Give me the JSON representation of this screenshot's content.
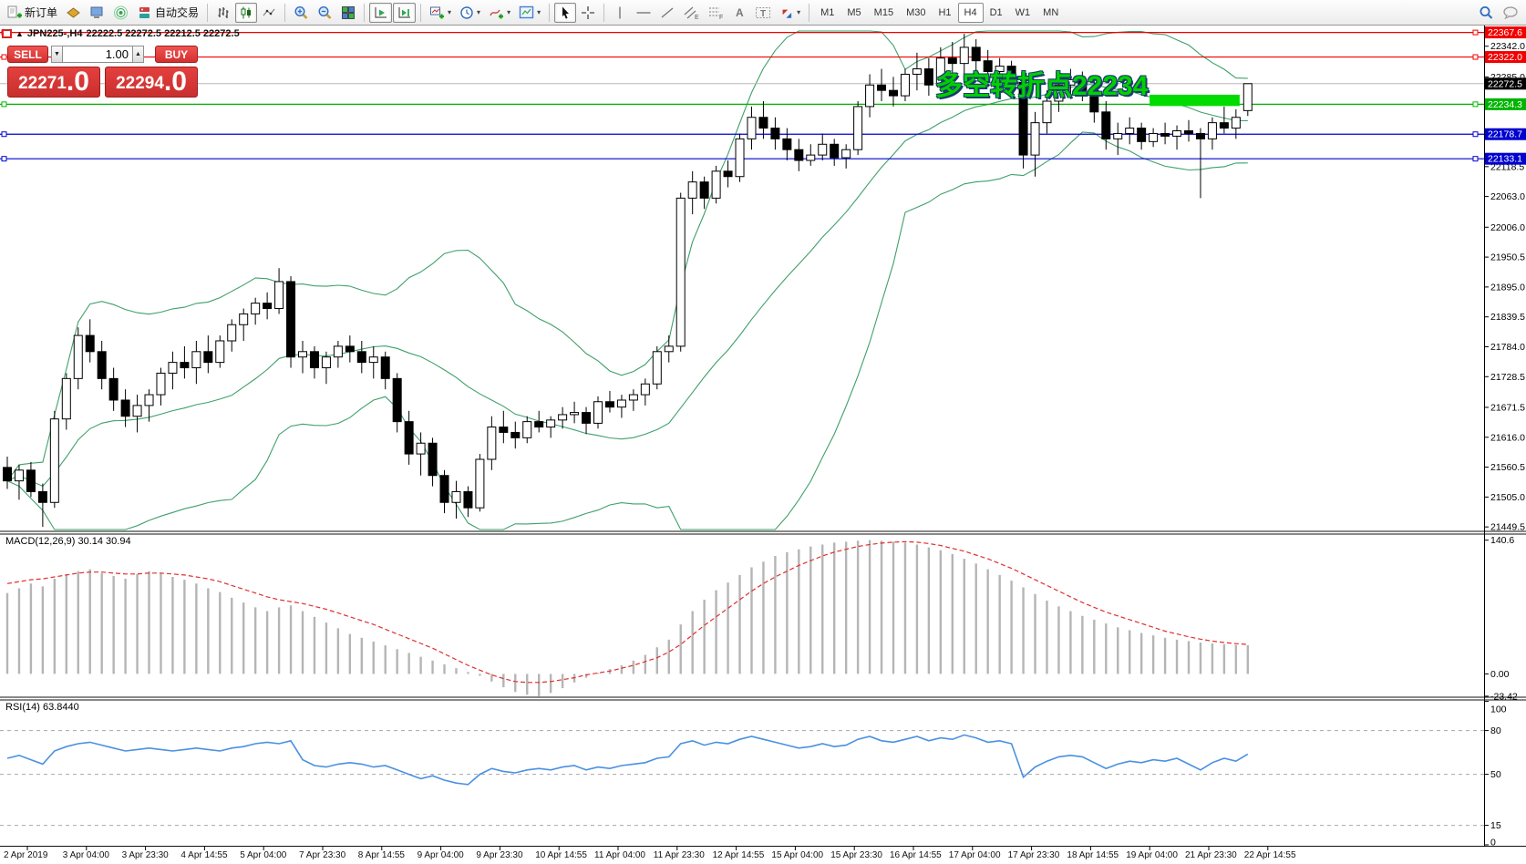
{
  "toolbar": {
    "new_order_label": "新订单",
    "auto_trading_label": "自动交易",
    "timeframes": [
      "M1",
      "M5",
      "M15",
      "M30",
      "H1",
      "H4",
      "D1",
      "W1",
      "MN"
    ],
    "active_timeframe": "H4"
  },
  "chart": {
    "symbol_title": "JPN225-,H4",
    "ohlc_text": "22222.5 22272.5 22212.5 22272.5",
    "annotation": "多空转折点22234",
    "panel_toggle": "▲",
    "trade_panel": {
      "sell_label": "SELL",
      "buy_label": "BUY",
      "volume": "1.00",
      "sell_price": "22271",
      "sell_price_frac": ".0",
      "buy_price": "22294",
      "buy_price_frac": ".0"
    },
    "macd_label": "MACD(12,26,9) 30.14 30.94",
    "rsi_label": "RSI(14) 63.8440"
  },
  "chart_data": {
    "type": "candlestick",
    "symbol": "JPN225-",
    "timeframe": "H4",
    "current_ohlc": {
      "open": 22222.5,
      "high": 22272.5,
      "low": 22212.5,
      "close": 22272.5
    },
    "bid_price_panel": 22271.0,
    "ask_price_panel": 22294.0,
    "main_price_range": [
      21443,
      22372
    ],
    "price_axis_ticks": [
      22342.0,
      22285.0,
      22229.5,
      22174.0,
      22118.5,
      22063.0,
      22006.0,
      21950.5,
      21895.0,
      21839.5,
      21784.0,
      21728.5,
      21671.5,
      21616.0,
      21560.5,
      21505.0,
      21449.5
    ],
    "price_line_labels": [
      {
        "text": "22367.6",
        "price": 22367.6,
        "color": "#f20000"
      },
      {
        "text": "22322.0",
        "price": 22322.0,
        "color": "#f20000"
      },
      {
        "text": "22272.5",
        "price": 22272.5,
        "color": "#000000"
      },
      {
        "text": "22234.3",
        "price": 22234.3,
        "color": "#00b400"
      },
      {
        "text": "22178.7",
        "price": 22178.7,
        "color": "#0000cf"
      },
      {
        "text": "22133.1",
        "price": 22133.1,
        "color": "#0000cf"
      }
    ],
    "horizontal_lines": [
      {
        "price": 22367.6,
        "color": "#f20000"
      },
      {
        "price": 22322.0,
        "color": "#f20000"
      },
      {
        "price": 22234.3,
        "color": "#00b400"
      },
      {
        "price": 22178.7,
        "color": "#0000cf"
      },
      {
        "price": 22133.1,
        "color": "#0000cf"
      }
    ],
    "current_price_line": {
      "price": 22272.5,
      "color": "#b8b8b8"
    },
    "highlight_rect": {
      "from_bar": 97,
      "to_bar": 104,
      "price_top": 22252,
      "price_bottom": 22231,
      "color": "#00dc00"
    },
    "bollinger": {
      "period": 20,
      "deviations": 2,
      "color": "#3fa06a"
    },
    "candles": [
      [
        21560,
        21580,
        21520,
        21535
      ],
      [
        21535,
        21565,
        21500,
        21555
      ],
      [
        21555,
        21570,
        21505,
        21515
      ],
      [
        21515,
        21530,
        21449.5,
        21495
      ],
      [
        21495,
        21665,
        21485,
        21650
      ],
      [
        21650,
        21735,
        21630,
        21725
      ],
      [
        21725,
        21820,
        21705,
        21805
      ],
      [
        21805,
        21835,
        21755,
        21775
      ],
      [
        21775,
        21795,
        21705,
        21725
      ],
      [
        21725,
        21745,
        21665,
        21685
      ],
      [
        21685,
        21705,
        21635,
        21655
      ],
      [
        21655,
        21695,
        21625,
        21675
      ],
      [
        21675,
        21705,
        21645,
        21695
      ],
      [
        21695,
        21745,
        21675,
        21735
      ],
      [
        21735,
        21775,
        21705,
        21755
      ],
      [
        21755,
        21785,
        21725,
        21745
      ],
      [
        21745,
        21795,
        21715,
        21775
      ],
      [
        21775,
        21805,
        21735,
        21755
      ],
      [
        21755,
        21805,
        21745,
        21795
      ],
      [
        21795,
        21835,
        21775,
        21825
      ],
      [
        21825,
        21855,
        21795,
        21845
      ],
      [
        21845,
        21875,
        21825,
        21865
      ],
      [
        21865,
        21885,
        21835,
        21855
      ],
      [
        21855,
        21930,
        21845,
        21905
      ],
      [
        21905,
        21915,
        21745,
        21765
      ],
      [
        21765,
        21795,
        21735,
        21775
      ],
      [
        21775,
        21785,
        21725,
        21745
      ],
      [
        21745,
        21775,
        21715,
        21765
      ],
      [
        21765,
        21795,
        21745,
        21785
      ],
      [
        21785,
        21805,
        21755,
        21775
      ],
      [
        21775,
        21795,
        21735,
        21755
      ],
      [
        21755,
        21785,
        21725,
        21765
      ],
      [
        21765,
        21775,
        21705,
        21725
      ],
      [
        21725,
        21735,
        21625,
        21645
      ],
      [
        21645,
        21665,
        21565,
        21585
      ],
      [
        21585,
        21625,
        21545,
        21605
      ],
      [
        21605,
        21615,
        21525,
        21545
      ],
      [
        21545,
        21555,
        21475,
        21495
      ],
      [
        21495,
        21535,
        21465,
        21515
      ],
      [
        21515,
        21525,
        21468,
        21485
      ],
      [
        21485,
        21585,
        21478,
        21575
      ],
      [
        21575,
        21655,
        21555,
        21635
      ],
      [
        21635,
        21665,
        21605,
        21625
      ],
      [
        21625,
        21645,
        21595,
        21615
      ],
      [
        21615,
        21655,
        21605,
        21645
      ],
      [
        21645,
        21665,
        21625,
        21635
      ],
      [
        21635,
        21655,
        21615,
        21648
      ],
      [
        21648,
        21672,
        21632,
        21658
      ],
      [
        21658,
        21682,
        21642,
        21662
      ],
      [
        21662,
        21672,
        21622,
        21642
      ],
      [
        21642,
        21692,
        21632,
        21682
      ],
      [
        21682,
        21702,
        21662,
        21672
      ],
      [
        21672,
        21695,
        21652,
        21685
      ],
      [
        21685,
        21705,
        21665,
        21695
      ],
      [
        21695,
        21725,
        21675,
        21715
      ],
      [
        21715,
        21785,
        21705,
        21775
      ],
      [
        21775,
        21805,
        21755,
        21785
      ],
      [
        21785,
        22070,
        21775,
        22060
      ],
      [
        22060,
        22110,
        22030,
        22090
      ],
      [
        22090,
        22100,
        22040,
        22060
      ],
      [
        22060,
        22120,
        22050,
        22110
      ],
      [
        22110,
        22130,
        22080,
        22100
      ],
      [
        22100,
        22180,
        22090,
        22170
      ],
      [
        22170,
        22230,
        22150,
        22210
      ],
      [
        22210,
        22240,
        22170,
        22190
      ],
      [
        22190,
        22210,
        22150,
        22170
      ],
      [
        22170,
        22190,
        22130,
        22150
      ],
      [
        22150,
        22170,
        22110,
        22130
      ],
      [
        22130,
        22160,
        22120,
        22140
      ],
      [
        22140,
        22180,
        22130,
        22160
      ],
      [
        22160,
        22170,
        22120,
        22135
      ],
      [
        22135,
        22160,
        22115,
        22150
      ],
      [
        22150,
        22240,
        22140,
        22230
      ],
      [
        22230,
        22290,
        22210,
        22270
      ],
      [
        22270,
        22300,
        22240,
        22260
      ],
      [
        22260,
        22285,
        22230,
        22250
      ],
      [
        22250,
        22300,
        22240,
        22290
      ],
      [
        22290,
        22330,
        22260,
        22300
      ],
      [
        22300,
        22320,
        22250,
        22270
      ],
      [
        22270,
        22340,
        22260,
        22320
      ],
      [
        22320,
        22350,
        22290,
        22310
      ],
      [
        22310,
        22365,
        22280,
        22340
      ],
      [
        22340,
        22355,
        22295,
        22315
      ],
      [
        22315,
        22335,
        22275,
        22295
      ],
      [
        22295,
        22320,
        22280,
        22305
      ],
      [
        22305,
        22315,
        22255,
        22275
      ],
      [
        22275,
        22285,
        22115,
        22140
      ],
      [
        22140,
        22220,
        22100,
        22200
      ],
      [
        22200,
        22260,
        22180,
        22240
      ],
      [
        22240,
        22290,
        22220,
        22270
      ],
      [
        22270,
        22300,
        22250,
        22280
      ],
      [
        22280,
        22295,
        22240,
        22260
      ],
      [
        22260,
        22280,
        22200,
        22220
      ],
      [
        22220,
        22240,
        22150,
        22170
      ],
      [
        22170,
        22200,
        22140,
        22180
      ],
      [
        22180,
        22210,
        22160,
        22190
      ],
      [
        22190,
        22200,
        22150,
        22165
      ],
      [
        22165,
        22190,
        22155,
        22180
      ],
      [
        22180,
        22200,
        22160,
        22175
      ],
      [
        22175,
        22195,
        22150,
        22185
      ],
      [
        22185,
        22205,
        22165,
        22180
      ],
      [
        22180,
        22190,
        22060,
        22170
      ],
      [
        22170,
        22210,
        22150,
        22200
      ],
      [
        22200,
        22230,
        22180,
        22190
      ],
      [
        22190,
        22225,
        22170,
        22210
      ],
      [
        22222.5,
        22272.5,
        22212.5,
        22272.5
      ]
    ],
    "macd": {
      "params": "12,26,9",
      "current_macd": 30.14,
      "current_signal": 30.94,
      "range": [
        -24.5,
        147
      ],
      "axis_values": [
        140.6,
        0,
        -23.42
      ],
      "axis_labels": [
        "140.6",
        "0.00",
        "-23.42"
      ],
      "histogram": [
        85,
        90,
        95,
        92,
        100,
        105,
        108,
        110,
        106,
        103,
        100,
        105,
        108,
        106,
        102,
        99,
        95,
        90,
        86,
        80,
        75,
        70,
        66,
        70,
        72,
        66,
        60,
        54,
        48,
        42,
        38,
        34,
        30,
        26,
        22,
        18,
        14,
        10,
        6,
        2,
        -2,
        -8,
        -14,
        -19,
        -22,
        -23.42,
        -20,
        -15,
        -9,
        -4,
        1,
        5,
        9,
        14,
        20,
        28,
        36,
        52,
        66,
        78,
        88,
        96,
        104,
        112,
        118,
        124,
        128,
        131,
        134,
        136,
        138,
        139,
        140,
        140.6,
        140,
        139,
        138,
        136,
        133,
        130,
        126,
        121,
        116,
        110,
        104,
        98,
        91,
        84,
        77,
        71,
        66,
        61,
        57,
        53,
        49,
        46,
        43,
        40.5,
        38,
        36,
        34.5,
        33,
        32,
        31.2,
        30.6,
        30.14
      ],
      "signal": [
        95,
        97,
        99,
        100,
        102,
        104,
        106,
        107,
        107,
        106,
        105,
        105,
        106,
        106,
        105,
        104,
        102,
        100,
        97,
        93,
        89,
        85,
        81,
        78,
        76,
        74,
        71,
        68,
        64,
        60,
        56,
        52,
        47,
        42,
        37,
        32,
        27,
        21,
        15,
        9,
        4,
        -1,
        -5,
        -8,
        -9,
        -9,
        -8,
        -6,
        -4,
        -1,
        1,
        3,
        6,
        9,
        13,
        17,
        23,
        31,
        41,
        51,
        60,
        69,
        78,
        87,
        95,
        102,
        108,
        114,
        119,
        124,
        128,
        131,
        134,
        136,
        137.5,
        138.5,
        139,
        138.5,
        137,
        135,
        132,
        129,
        125,
        121,
        116,
        111,
        105,
        99,
        93,
        87,
        81,
        75,
        70,
        65,
        61,
        57,
        53,
        49,
        45,
        42,
        39,
        36.5,
        34.5,
        33,
        31.8,
        30.94
      ]
    },
    "rsi": {
      "period": 14,
      "current": 63.844,
      "range": [
        1,
        101
      ],
      "levels": [
        80,
        50,
        15
      ],
      "axis_labels": [
        "100",
        "80",
        "50",
        "15",
        "0"
      ],
      "values": [
        61,
        63,
        60,
        57,
        66,
        69,
        71,
        72,
        70,
        68,
        66,
        67,
        68,
        67,
        66,
        67,
        68,
        67,
        66,
        68,
        69,
        71,
        72,
        71,
        73,
        60,
        56,
        55,
        57,
        58,
        57,
        55,
        56,
        53,
        50,
        47,
        49,
        46,
        44,
        43,
        50,
        54,
        52,
        51,
        53,
        54,
        53,
        55,
        56,
        53,
        55,
        54,
        56,
        57,
        58,
        61,
        62,
        71,
        73,
        70,
        72,
        71,
        74,
        76,
        74,
        72,
        70,
        68,
        69,
        71,
        69,
        70,
        74,
        76,
        73,
        72,
        74,
        76,
        73,
        75,
        74,
        77,
        75,
        72,
        73,
        71,
        48,
        55,
        59,
        62,
        63,
        62,
        58,
        54,
        57,
        59,
        58,
        60,
        59,
        61,
        57,
        53,
        58,
        61,
        59,
        63.844
      ]
    },
    "time_labels": [
      "2 Apr 2019",
      "3 Apr 04:00",
      "3 Apr 23:30",
      "4 Apr 14:55",
      "5 Apr 04:00",
      "7 Apr 23:30",
      "8 Apr 14:55",
      "9 Apr 04:00",
      "9 Apr 23:30",
      "10 Apr 14:55",
      "11 Apr 04:00",
      "11 Apr 23:30",
      "12 Apr 14:55",
      "15 Apr 04:00",
      "15 Apr 23:30",
      "16 Apr 14:55",
      "17 Apr 04:00",
      "17 Apr 23:30",
      "18 Apr 14:55",
      "19 Apr 04:00",
      "21 Apr 23:30",
      "22 Apr 14:55"
    ]
  }
}
